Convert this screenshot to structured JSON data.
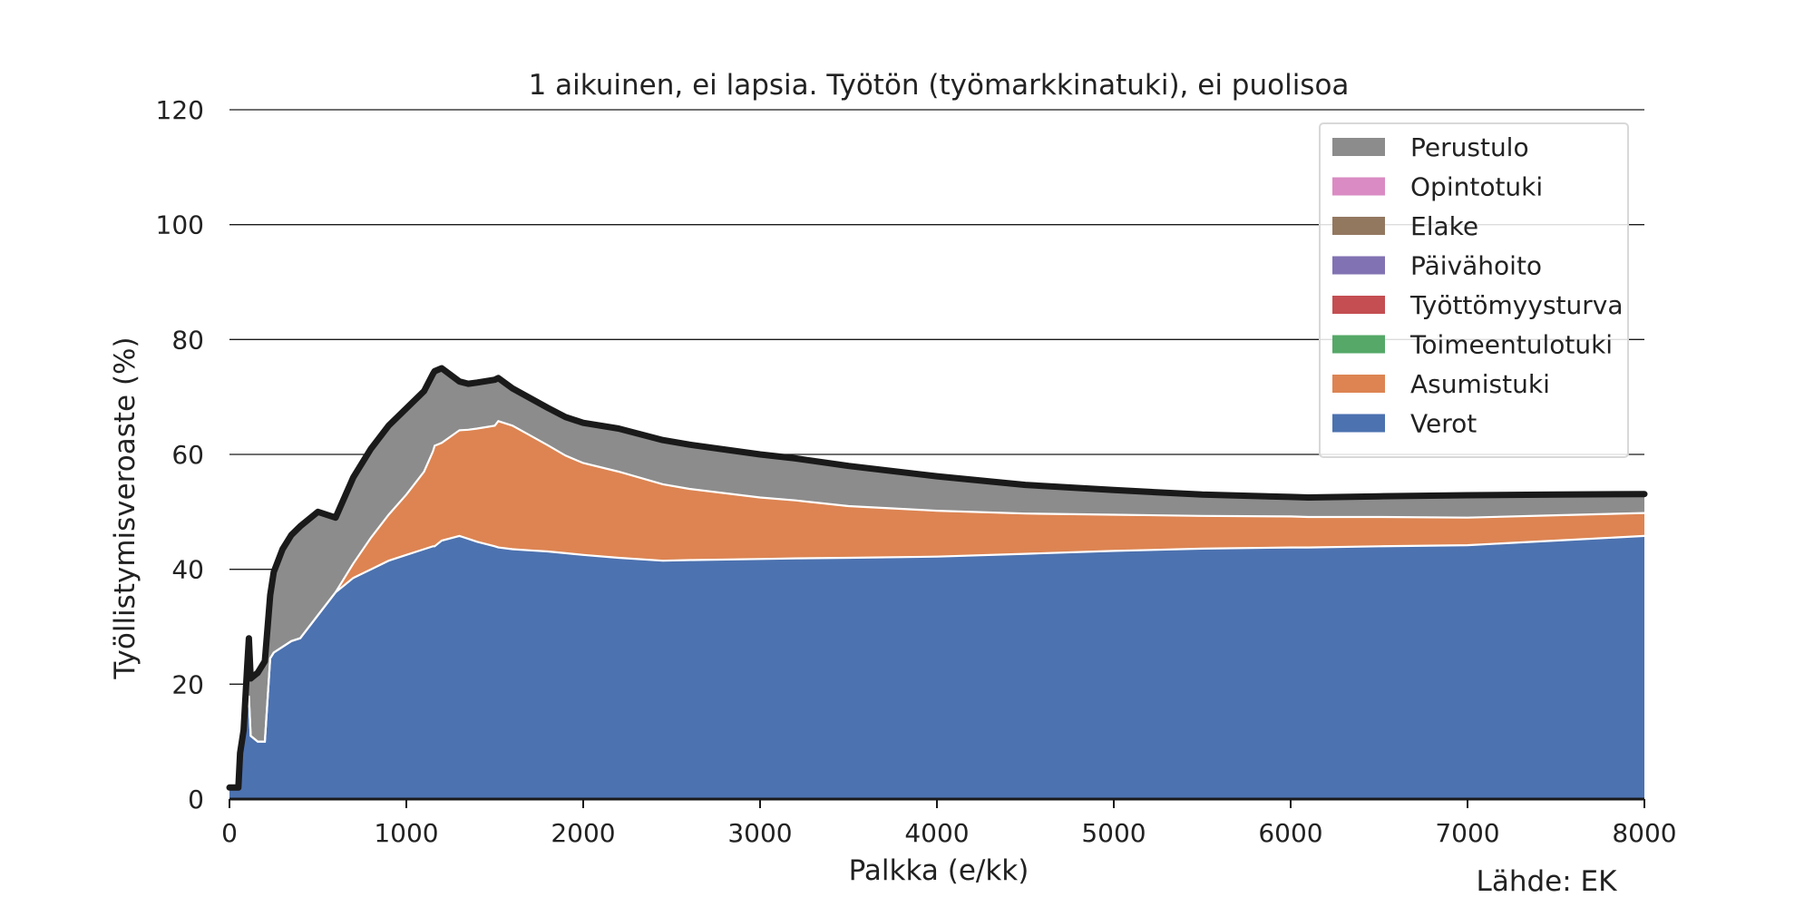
{
  "chart_data": {
    "type": "area",
    "title": "1 aikuinen, ei lapsia. Työtön (työmarkkinatuki), ei puolisoa",
    "xlabel": "Palkka (e/kk)",
    "ylabel": "Työllistymisveroaste (%)",
    "source": "Lähde: EK",
    "xlim": [
      0,
      8000
    ],
    "ylim": [
      0,
      120
    ],
    "xticks": [
      0,
      1000,
      2000,
      3000,
      4000,
      5000,
      6000,
      7000,
      8000
    ],
    "yticks": [
      0,
      20,
      40,
      60,
      80,
      100,
      120
    ],
    "grid": "horizontal",
    "legend_position": "top-right",
    "x": [
      0,
      50,
      60,
      80,
      100,
      110,
      120,
      140,
      160,
      200,
      230,
      250,
      300,
      350,
      400,
      500,
      600,
      700,
      800,
      900,
      1000,
      1100,
      1150,
      1160,
      1200,
      1300,
      1350,
      1400,
      1500,
      1520,
      1600,
      1700,
      1800,
      1900,
      2000,
      2200,
      2450,
      2600,
      3000,
      3200,
      3500,
      4000,
      4500,
      5000,
      5500,
      6000,
      6100,
      6500,
      7000,
      7500,
      8000
    ],
    "series": [
      {
        "name": "Verot",
        "color": "#4c72b0",
        "values": [
          2,
          2,
          8,
          12,
          16,
          18,
          11,
          10.5,
          10,
          10,
          24.5,
          25.5,
          26.5,
          27.5,
          28,
          32,
          36,
          38.5,
          40,
          41.5,
          42.5,
          43.5,
          44,
          44,
          45,
          45.8,
          45.3,
          44.8,
          44,
          43.8,
          43.5,
          43.3,
          43.1,
          42.8,
          42.5,
          42,
          41.5,
          41.6,
          41.8,
          41.9,
          42,
          42.2,
          42.7,
          43.2,
          43.6,
          43.8,
          43.8,
          44,
          44.2,
          45,
          45.8
        ]
      },
      {
        "name": "Asumistuki",
        "color": "#dd8452",
        "values": [
          0,
          0,
          0,
          0,
          0,
          0,
          0,
          0,
          0,
          0,
          0,
          0,
          0,
          0,
          0,
          0,
          0,
          2.5,
          5.5,
          8,
          10.5,
          13.5,
          16.5,
          17.5,
          17,
          18.4,
          19,
          19.7,
          21,
          22,
          21.5,
          20,
          18.5,
          17,
          16,
          15,
          13.3,
          12.4,
          10.7,
          10.1,
          9,
          8,
          7,
          6.3,
          5.7,
          5.4,
          5.3,
          5.1,
          4.8,
          4.4,
          4
        ]
      },
      {
        "name": "Toimeentulotuki",
        "color": "#55a868",
        "values": [
          0,
          0,
          0,
          0,
          0,
          0,
          0,
          0,
          0,
          0,
          0,
          0,
          0,
          0,
          0,
          0,
          0,
          0,
          0,
          0,
          0,
          0,
          0,
          0,
          0,
          0,
          0,
          0,
          0,
          0,
          0,
          0,
          0,
          0,
          0,
          0,
          0,
          0,
          0,
          0,
          0,
          0,
          0,
          0,
          0,
          0,
          0,
          0,
          0,
          0,
          0
        ]
      },
      {
        "name": "Työttömyysturva",
        "color": "#c44e52",
        "values": [
          0,
          0,
          0,
          0,
          0,
          0,
          0,
          0,
          0,
          0,
          0,
          0,
          0,
          0,
          0,
          0,
          0,
          0,
          0,
          0,
          0,
          0,
          0,
          0,
          0,
          0,
          0,
          0,
          0,
          0,
          0,
          0,
          0,
          0,
          0,
          0,
          0,
          0,
          0,
          0,
          0,
          0,
          0,
          0,
          0,
          0,
          0,
          0,
          0,
          0,
          0
        ]
      },
      {
        "name": "Päivähoito",
        "color": "#8172b3",
        "values": [
          0,
          0,
          0,
          0,
          0,
          0,
          0,
          0,
          0,
          0,
          0,
          0,
          0,
          0,
          0,
          0,
          0,
          0,
          0,
          0,
          0,
          0,
          0,
          0,
          0,
          0,
          0,
          0,
          0,
          0,
          0,
          0,
          0,
          0,
          0,
          0,
          0,
          0,
          0,
          0,
          0,
          0,
          0,
          0,
          0,
          0,
          0,
          0,
          0,
          0,
          0
        ]
      },
      {
        "name": "Elake",
        "color": "#937860",
        "values": [
          0,
          0,
          0,
          0,
          0,
          0,
          0,
          0,
          0,
          0,
          0,
          0,
          0,
          0,
          0,
          0,
          0,
          0,
          0,
          0,
          0,
          0,
          0,
          0,
          0,
          0,
          0,
          0,
          0,
          0,
          0,
          0,
          0,
          0,
          0,
          0,
          0,
          0,
          0,
          0,
          0,
          0,
          0,
          0,
          0,
          0,
          0,
          0,
          0,
          0,
          0
        ]
      },
      {
        "name": "Opintotuki",
        "color": "#da8bc3",
        "values": [
          0,
          0,
          0,
          0,
          0,
          0,
          0,
          0,
          0,
          0,
          0,
          0,
          0,
          0,
          0,
          0,
          0,
          0,
          0,
          0,
          0,
          0,
          0,
          0,
          0,
          0,
          0,
          0,
          0,
          0,
          0,
          0,
          0,
          0,
          0,
          0,
          0,
          0,
          0,
          0,
          0,
          0,
          0,
          0,
          0,
          0,
          0,
          0,
          0,
          0,
          0
        ]
      },
      {
        "name": "Perustulo",
        "color": "#8c8c8c",
        "values": [
          0,
          0,
          0,
          0,
          7,
          10,
          10,
          11,
          12,
          14,
          11,
          14,
          17,
          18.5,
          19.5,
          18,
          13,
          15,
          15.5,
          15.5,
          15,
          14,
          13.5,
          13,
          13,
          8.5,
          8,
          8,
          8,
          7.5,
          6.5,
          6.5,
          6.5,
          6.7,
          7,
          7.5,
          7.7,
          7.7,
          7.5,
          7.3,
          7,
          6,
          5,
          4.3,
          3.7,
          3.4,
          3.4,
          3.6,
          3.9,
          3.6,
          3.3
        ]
      }
    ],
    "total_line": {
      "color": "#1a1a1a",
      "values": [
        2,
        2,
        8,
        12,
        23,
        28,
        21,
        21.5,
        22,
        24,
        35.5,
        39.5,
        43.5,
        46,
        47.5,
        50,
        49,
        56,
        61,
        65,
        68,
        71,
        74,
        74.5,
        75,
        72.7,
        72.3,
        72.5,
        73,
        73.3,
        71.5,
        69.8,
        68.1,
        66.5,
        65.5,
        64.5,
        62.5,
        61.7,
        60,
        59.3,
        58,
        56.2,
        54.7,
        53.8,
        53,
        52.6,
        52.5,
        52.7,
        52.9,
        53,
        53.1
      ]
    }
  }
}
